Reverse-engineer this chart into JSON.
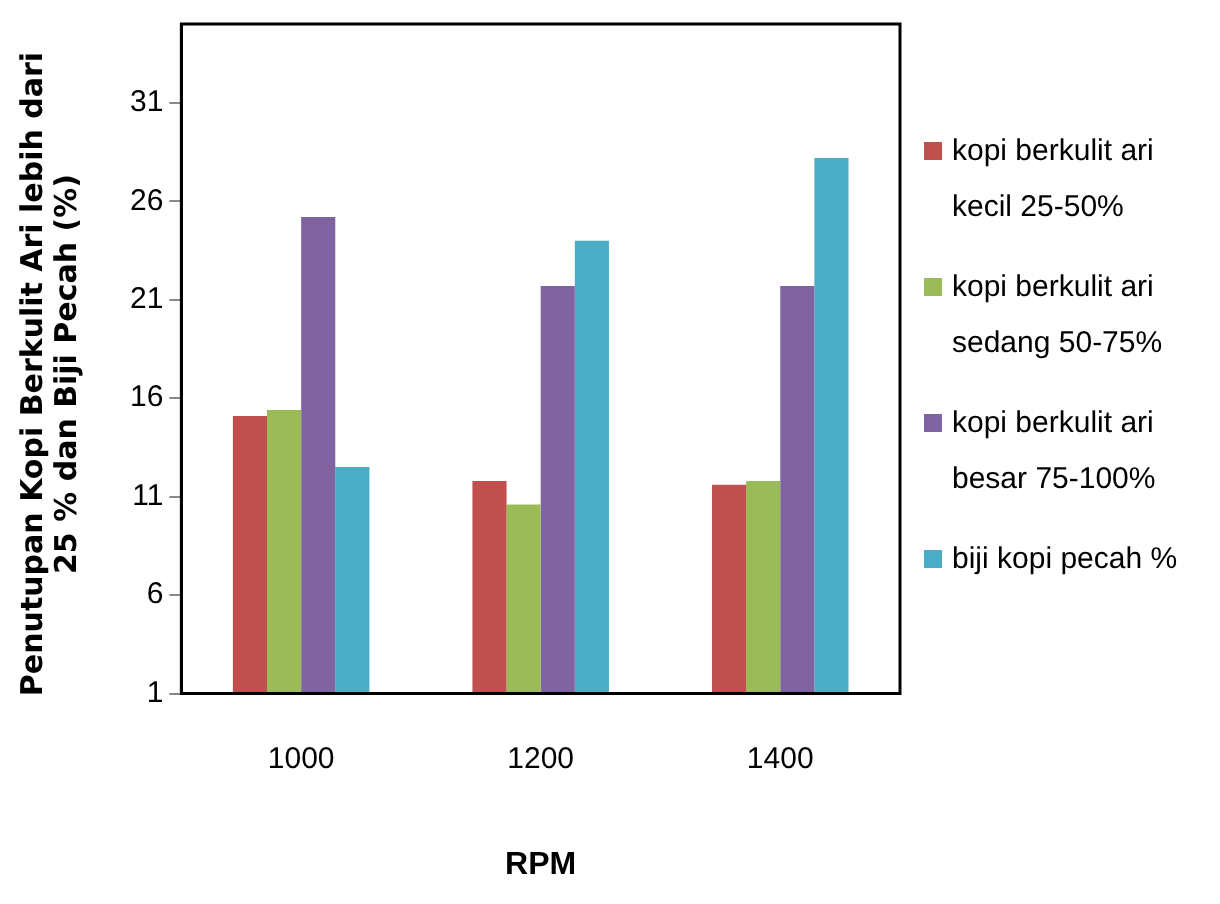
{
  "chart_data": {
    "type": "bar",
    "xlabel": "RPM",
    "ylabel": "Penutupan Kopi Berkulit Ari lebih dari 25 %  dan Biji Pecah (%)",
    "categories": [
      "1000",
      "1200",
      "1400"
    ],
    "series": [
      {
        "name": "kopi berkulit ari kecil 25-50%",
        "color": "#c0504d",
        "values": [
          15.1,
          11.8,
          11.6
        ]
      },
      {
        "name": "kopi berkulit ari sedang 50-75%",
        "color": "#9bbb59",
        "values": [
          15.4,
          10.6,
          11.8
        ]
      },
      {
        "name": "kopi berkulit ari besar 75-100%",
        "color": "#8064a2",
        "values": [
          25.2,
          21.7,
          21.7
        ]
      },
      {
        "name": "biji kopi pecah %",
        "color": "#4bacc6",
        "values": [
          12.5,
          24.0,
          28.2
        ]
      }
    ],
    "ylim": [
      1,
      35
    ],
    "yticks": [
      1,
      6,
      11,
      16,
      21,
      26,
      31
    ],
    "grid": false,
    "legend": "right"
  }
}
